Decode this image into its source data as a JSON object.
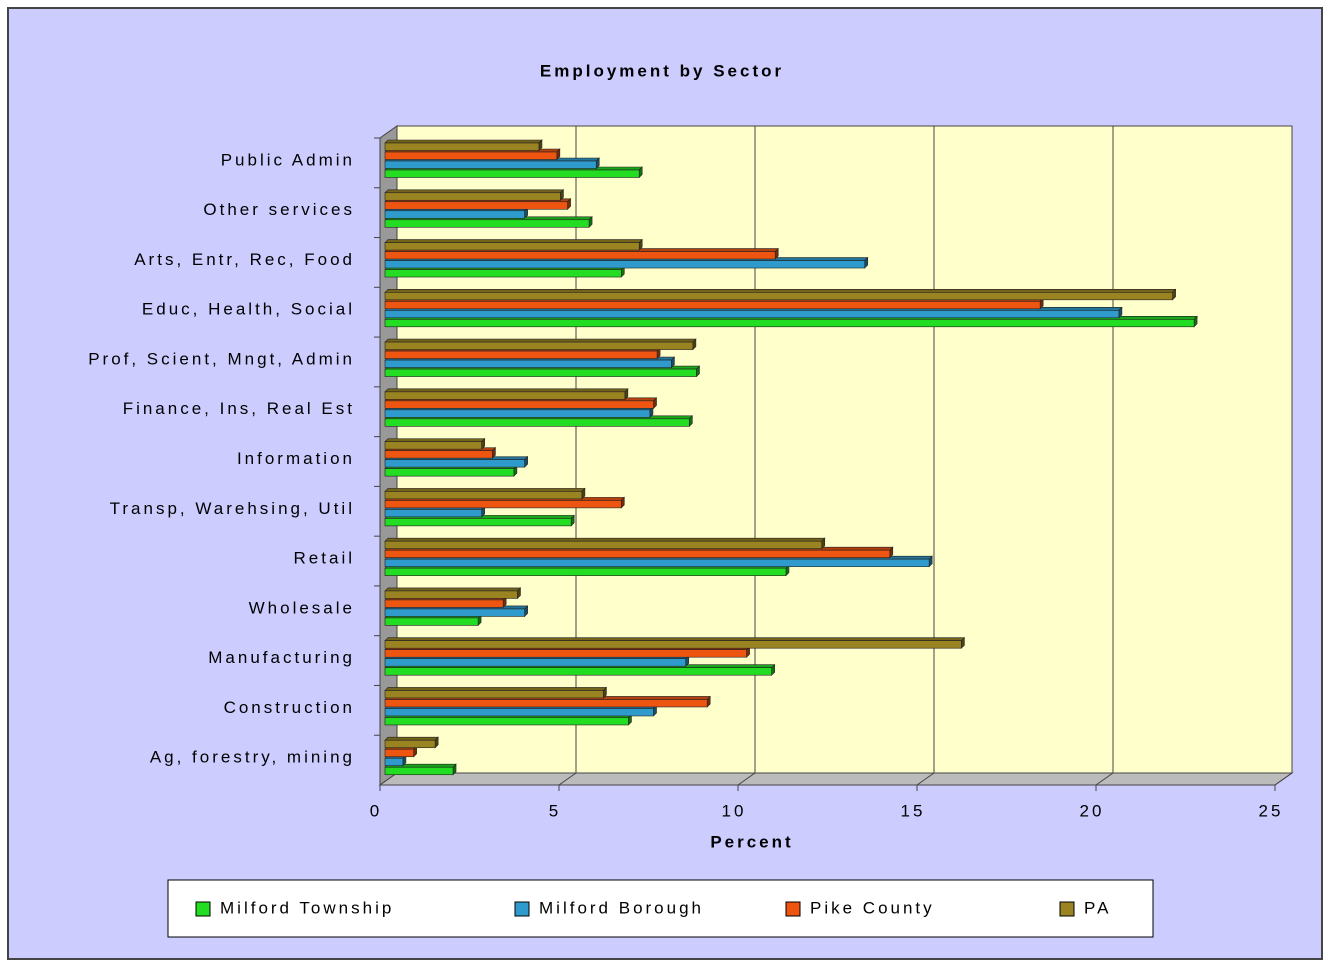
{
  "chart_data": {
    "type": "bar",
    "orientation": "horizontal",
    "title": "Employment by Sector",
    "xlabel": "Percent",
    "categories": [
      "Ag, forestry, mining",
      "Construction",
      "Manufacturing",
      "Wholesale",
      "Retail",
      "Transp, Warehsing, Util",
      "Information",
      "Finance, Ins, Real Est",
      "Prof, Scient, Mngt, Admin",
      "Educ, Health, Social",
      "Arts, Entr, Rec, Food",
      "Other services",
      "Public Admin"
    ],
    "series": [
      {
        "name": "Milford Township",
        "color": "#22dd22",
        "values": [
          1.9,
          6.8,
          10.8,
          2.6,
          11.2,
          5.2,
          3.6,
          8.5,
          8.7,
          22.6,
          6.6,
          5.7,
          7.1
        ]
      },
      {
        "name": "Milford Borough",
        "color": "#2f9bcc",
        "values": [
          0.5,
          7.5,
          8.4,
          3.9,
          15.2,
          2.7,
          3.9,
          7.4,
          8.0,
          20.5,
          13.4,
          3.9,
          5.9
        ]
      },
      {
        "name": "Pike County",
        "color": "#ee5511",
        "values": [
          0.8,
          9.0,
          10.1,
          3.3,
          14.1,
          6.6,
          3.0,
          7.5,
          7.6,
          18.3,
          10.9,
          5.1,
          4.8
        ]
      },
      {
        "name": "PA",
        "color": "#9a8422",
        "values": [
          1.4,
          6.1,
          16.1,
          3.7,
          12.2,
          5.5,
          2.7,
          6.7,
          8.6,
          22.0,
          7.1,
          4.9,
          4.3
        ]
      }
    ],
    "xlim": [
      0,
      25
    ],
    "xticks": [
      0,
      5,
      10,
      15,
      20,
      25
    ],
    "grid": true,
    "legend": "bottom"
  }
}
